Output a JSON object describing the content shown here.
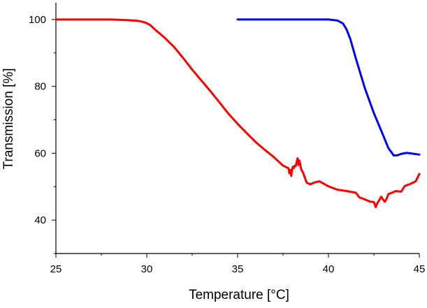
{
  "chart_data": {
    "type": "line",
    "title": "",
    "xlabel": "Temperature [°C]",
    "ylabel": "Transmission [%]",
    "xlim": [
      25,
      45
    ],
    "ylim": [
      30,
      105
    ],
    "x_ticks": [
      25,
      30,
      35,
      40,
      45
    ],
    "x_tick_labels": [
      "25",
      "30",
      "35",
      "40",
      "45"
    ],
    "y_ticks": [
      40,
      60,
      80,
      100
    ],
    "y_tick_labels": [
      "40",
      "60",
      "80",
      "100"
    ],
    "grid": false,
    "legend": "none",
    "series": [
      {
        "name": "red",
        "color": "#ff0000",
        "x": [
          25.0,
          26.0,
          27.0,
          28.0,
          28.5,
          29.0,
          29.5,
          29.8,
          30.0,
          30.2,
          30.5,
          31.0,
          31.5,
          32.0,
          32.5,
          33.0,
          33.5,
          34.0,
          34.5,
          35.0,
          35.5,
          36.0,
          36.5,
          37.0,
          37.5,
          37.8,
          37.85,
          37.9,
          37.95,
          38.0,
          38.05,
          38.1,
          38.15,
          38.2,
          38.3,
          38.35,
          38.4,
          38.5,
          38.6,
          38.7,
          38.8,
          39.0,
          39.2,
          39.5,
          40.0,
          40.5,
          41.0,
          41.5,
          41.7,
          42.0,
          42.3,
          42.5,
          42.6,
          42.7,
          42.8,
          42.9,
          43.0,
          43.1,
          43.2,
          43.3,
          43.5,
          43.7,
          44.0,
          44.2,
          44.5,
          44.8,
          45.0
        ],
        "y": [
          100,
          100,
          100,
          100,
          99.9,
          99.8,
          99.6,
          99.3,
          98.9,
          98.3,
          96.8,
          94.5,
          91.8,
          88.5,
          85.0,
          81.8,
          78.6,
          75.2,
          71.8,
          68.8,
          66.0,
          63.3,
          61.0,
          58.8,
          56.3,
          55.5,
          54.0,
          55.0,
          53.2,
          55.3,
          56.0,
          55.6,
          56.3,
          56.2,
          58.5,
          56.5,
          57.8,
          55.2,
          54.2,
          52.7,
          51.2,
          50.7,
          51.2,
          51.6,
          50.1,
          49.1,
          48.7,
          48.2,
          46.8,
          46.2,
          45.5,
          45.4,
          43.9,
          45.2,
          46.0,
          47.0,
          46.2,
          45.5,
          46.4,
          47.8,
          48.2,
          48.7,
          48.5,
          50.2,
          50.8,
          51.6,
          53.8
        ]
      },
      {
        "name": "blue",
        "color": "#0000ff",
        "x": [
          35.0,
          36.0,
          37.0,
          38.0,
          39.0,
          40.0,
          40.5,
          40.8,
          41.0,
          41.2,
          41.5,
          42.0,
          42.5,
          43.0,
          43.3,
          43.6,
          43.8,
          44.0,
          44.3,
          44.6,
          45.0
        ],
        "y": [
          100,
          100,
          100,
          100,
          100,
          100,
          99.7,
          98.8,
          97.0,
          94.2,
          88.5,
          79.5,
          72.0,
          65.5,
          61.5,
          59.3,
          59.4,
          59.8,
          60.1,
          59.9,
          59.6
        ]
      }
    ]
  }
}
